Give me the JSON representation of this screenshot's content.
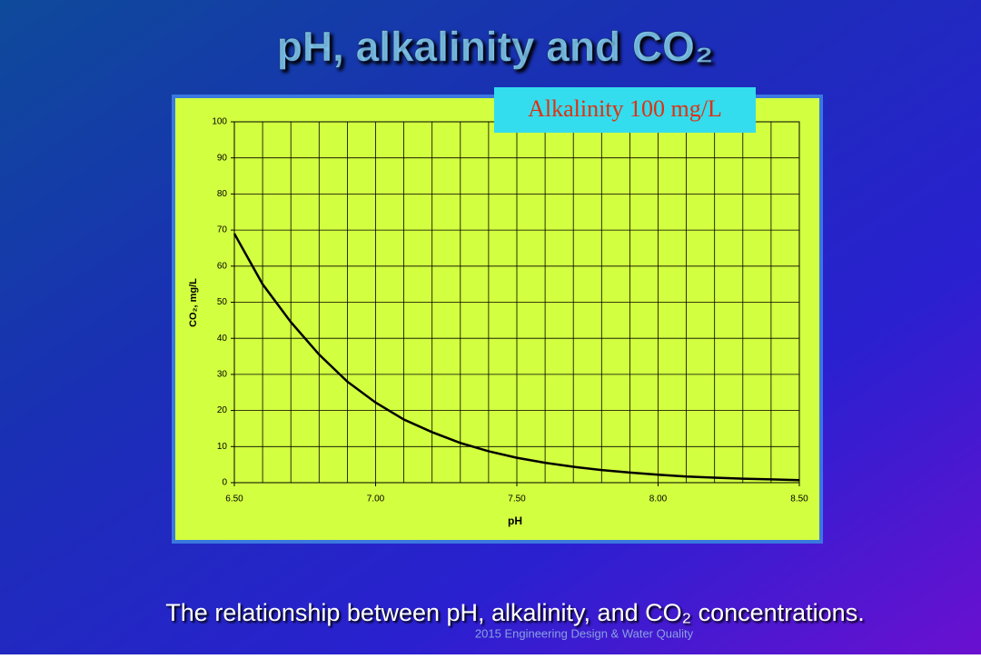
{
  "slide": {
    "title": "pH, alkalinity and CO₂",
    "caption": "The relationship between pH, alkalinity, and CO₂ concentrations.",
    "footer": "2015  Engineering Design & Water Quality"
  },
  "chart_data": {
    "type": "line",
    "annotation": "Alkalinity 100 mg/L",
    "x_label": "pH",
    "y_label": "CO₂, mg/L",
    "x": [
      6.5,
      6.6,
      6.7,
      6.8,
      6.9,
      7.0,
      7.1,
      7.2,
      7.3,
      7.4,
      7.5,
      7.6,
      7.7,
      7.8,
      7.9,
      8.0,
      8.1,
      8.2,
      8.3,
      8.4,
      8.5
    ],
    "series": [
      {
        "name": "CO₂",
        "color": "#000000",
        "values": [
          69,
          55,
          44.5,
          35.5,
          28,
          22.2,
          17.5,
          14,
          11,
          8.7,
          6.9,
          5.5,
          4.4,
          3.5,
          2.8,
          2.2,
          1.7,
          1.4,
          1.1,
          0.9,
          0.7
        ]
      }
    ],
    "xlim": [
      6.5,
      8.5
    ],
    "xticks": [
      {
        "value": 6.5,
        "label": "6.50"
      },
      {
        "value": 7.0,
        "label": "7.00"
      },
      {
        "value": 7.5,
        "label": "7.50"
      },
      {
        "value": 8.0,
        "label": "8.00"
      },
      {
        "value": 8.5,
        "label": "8.50"
      }
    ],
    "ylim": [
      0,
      100
    ],
    "yticks": [
      0,
      10,
      20,
      30,
      40,
      50,
      60,
      70,
      80,
      90,
      100
    ],
    "grid": true
  }
}
